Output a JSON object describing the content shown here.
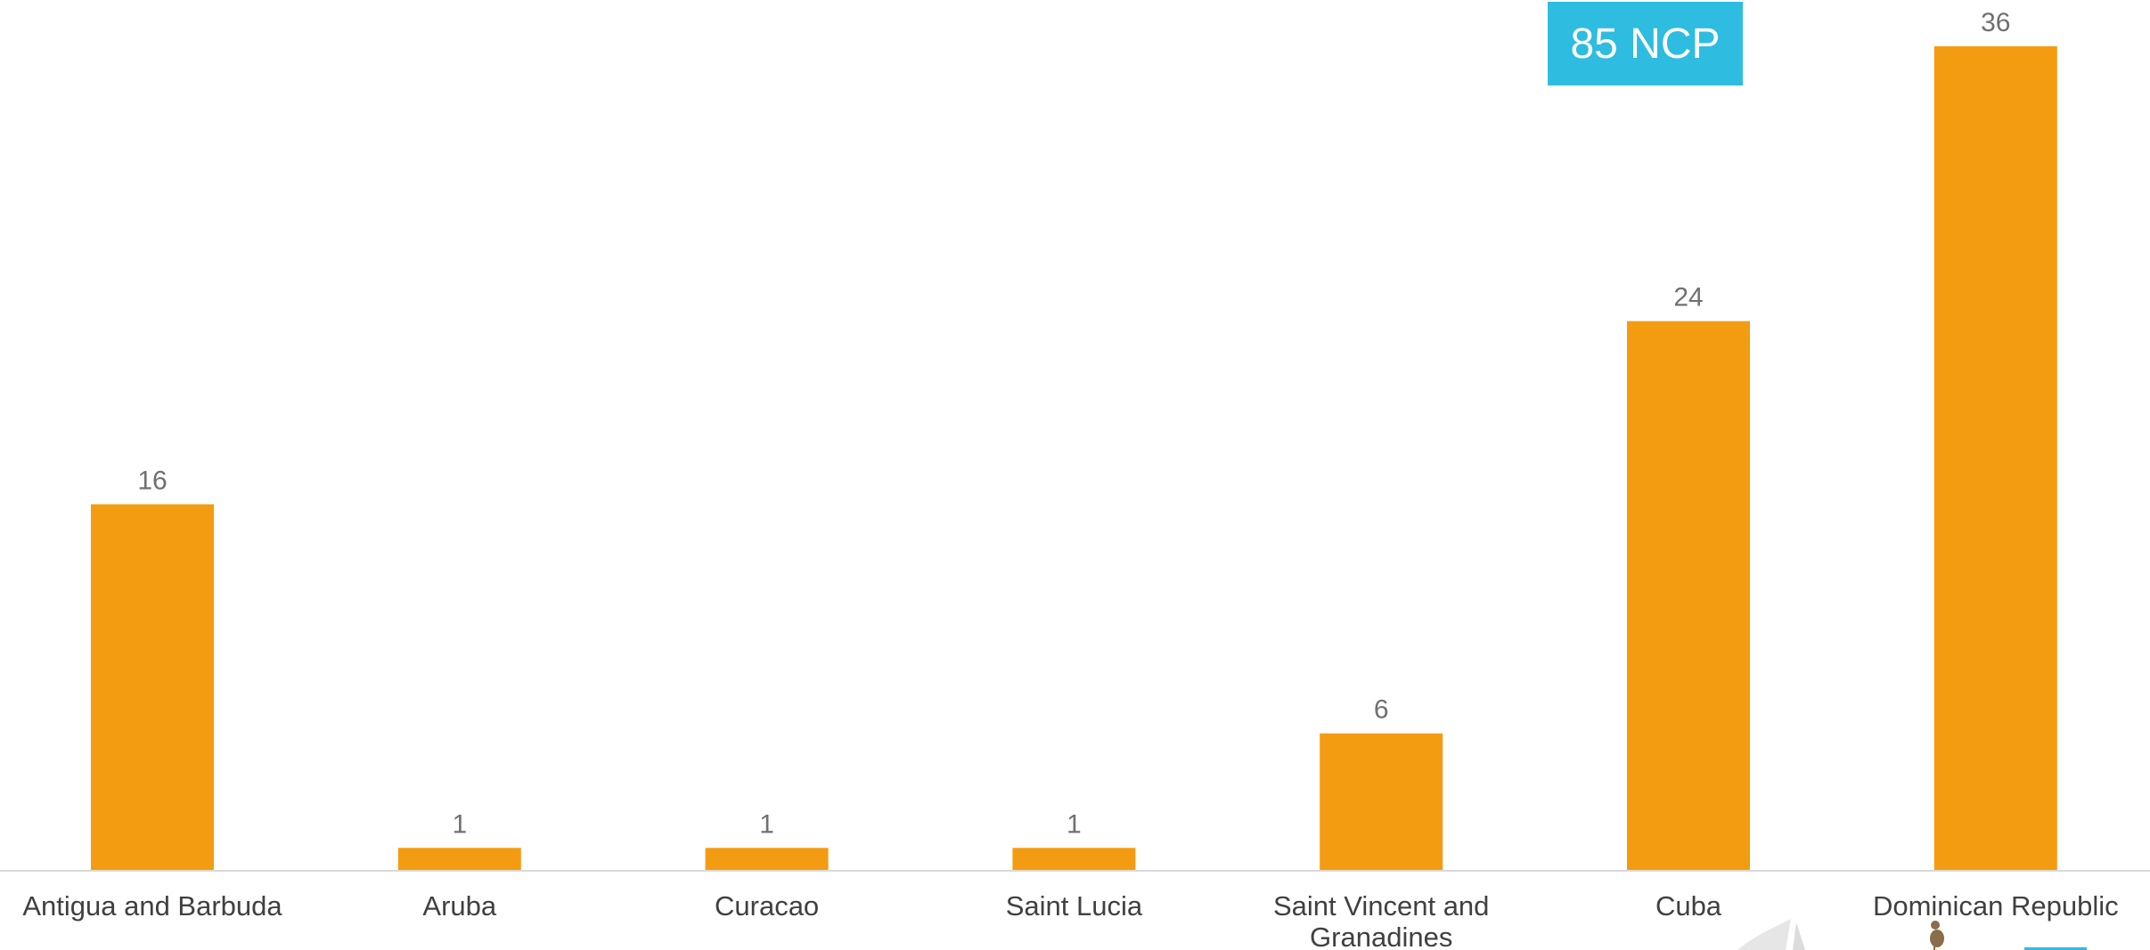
{
  "badge": {
    "text": "85 NCP",
    "color": "#2ebce0"
  },
  "colors": {
    "bar": "#f39c12",
    "value_label": "#707070",
    "tick_label": "#404040",
    "axis": "#d9d9d9"
  },
  "logo": {
    "icon": "bird-logo-icon"
  },
  "chart_data": {
    "type": "bar",
    "title": "",
    "xlabel": "",
    "ylabel": "",
    "categories": [
      "Antigua and Barbuda",
      "Aruba",
      "Curacao",
      "Saint Lucia",
      "Saint Vincent and Granadines",
      "Cuba",
      "Dominican Republic"
    ],
    "category_lines": [
      [
        "Antigua and Barbuda"
      ],
      [
        "Aruba"
      ],
      [
        "Curacao"
      ],
      [
        "Saint Lucia"
      ],
      [
        "Saint Vincent and",
        "Granadines"
      ],
      [
        "Cuba"
      ],
      [
        "Dominican Republic"
      ]
    ],
    "values": [
      16,
      1,
      1,
      1,
      6,
      24,
      36
    ],
    "data_labels": true,
    "ylim": [
      0,
      36
    ],
    "grid": false,
    "legend": "none"
  }
}
